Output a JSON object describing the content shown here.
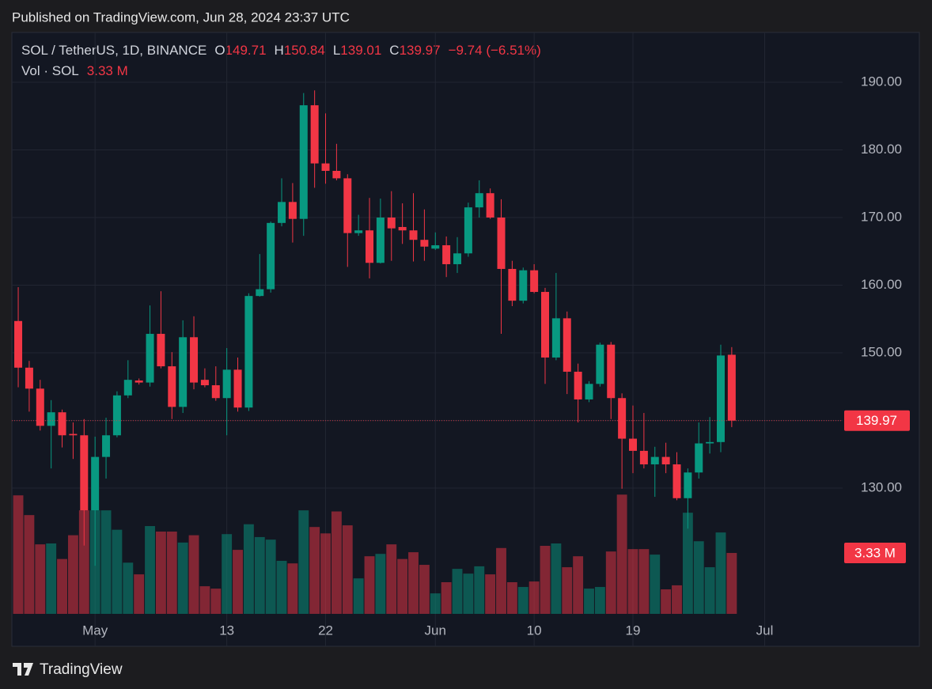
{
  "chart_data": {
    "type": "candlestick",
    "published": "Published on TradingView.com, Jun 28, 2024 23:37 UTC",
    "title": "SOL / TetherUS, 1D, BINANCE",
    "header_labels": {
      "open": "O",
      "high": "H",
      "low": "L",
      "close": "C"
    },
    "change": "−9.74 (−6.51%)",
    "logo": "TradingView",
    "up_color": "#089981",
    "down_color": "#f23645",
    "open": [
      154.7,
      147.8,
      144.7,
      139.2,
      141.2,
      138.0,
      137.8,
      126.7,
      134.6,
      137.8,
      143.7,
      145.9,
      145.6,
      152.8,
      148.0,
      142.0,
      152.3,
      146.0,
      145.2,
      143.3,
      147.5,
      141.9,
      158.4,
      159.4,
      169.2,
      172.3,
      169.8,
      186.6,
      178.0,
      176.9,
      175.8,
      167.7,
      168.1,
      163.3,
      170.0,
      168.6,
      168.1,
      166.7,
      165.4,
      165.9,
      163.1,
      164.7,
      171.5,
      173.6,
      170.0,
      162.4,
      157.7,
      162.2,
      159.0,
      149.3,
      155.1,
      147.2,
      143.1,
      145.4,
      151.2,
      143.3,
      137.3,
      135.5,
      133.5,
      134.6,
      133.5,
      128.5,
      132.3,
      136.6,
      136.8,
      149.71
    ],
    "high": [
      159.7,
      148.8,
      146.0,
      143.0,
      141.6,
      139.7,
      140.2,
      137.6,
      140.4,
      144.3,
      148.9,
      146.2,
      157.0,
      159.1,
      150.1,
      154.8,
      155.4,
      147.7,
      148.0,
      150.7,
      149.3,
      158.8,
      164.6,
      169.4,
      175.8,
      175.1,
      188.4,
      188.8,
      185.4,
      180.9,
      176.4,
      170.4,
      172.9,
      172.8,
      173.9,
      172.1,
      173.6,
      171.2,
      167.8,
      167.2,
      167.1,
      172.2,
      175.5,
      174.3,
      172.7,
      163.6,
      162.6,
      163.1,
      159.6,
      161.8,
      156.1,
      148.4,
      145.8,
      151.5,
      151.6,
      144.0,
      142.2,
      141.1,
      136.1,
      136.7,
      135.3,
      132.9,
      139.7,
      140.5,
      151.2,
      150.84
    ],
    "low": [
      144.9,
      141.3,
      138.5,
      132.9,
      136.0,
      134.3,
      121.5,
      118.5,
      131.4,
      137.5,
      143.3,
      145.3,
      145.0,
      147.7,
      140.2,
      141.1,
      144.6,
      144.9,
      142.9,
      137.8,
      141.3,
      141.4,
      158.3,
      158.9,
      168.7,
      166.3,
      167.3,
      174.4,
      175.0,
      175.5,
      162.7,
      167.3,
      161.0,
      163.2,
      163.6,
      166.1,
      163.5,
      163.6,
      165.2,
      161.2,
      161.8,
      164.2,
      170.0,
      169.8,
      152.8,
      156.9,
      157.3,
      158.8,
      145.4,
      148.9,
      143.9,
      139.7,
      142.7,
      145.0,
      140.2,
      129.9,
      132.2,
      132.9,
      128.7,
      132.2,
      128.2,
      124.0,
      131.4,
      135.1,
      135.3,
      139.01
    ],
    "close": [
      147.8,
      144.7,
      139.2,
      141.2,
      137.8,
      137.8,
      126.7,
      134.6,
      137.8,
      143.7,
      146.0,
      145.6,
      152.8,
      148.0,
      142.0,
      152.3,
      145.6,
      145.2,
      143.3,
      147.5,
      141.9,
      158.4,
      159.4,
      169.2,
      172.3,
      169.8,
      186.6,
      178.0,
      176.9,
      175.8,
      167.7,
      168.1,
      163.3,
      170.0,
      168.4,
      168.1,
      166.7,
      165.7,
      165.9,
      163.1,
      164.7,
      171.5,
      173.6,
      170.0,
      162.4,
      157.7,
      162.2,
      159.0,
      149.3,
      155.1,
      147.2,
      143.1,
      145.4,
      151.2,
      143.3,
      137.3,
      135.5,
      133.5,
      134.6,
      133.5,
      128.5,
      132.3,
      136.6,
      136.8,
      149.6,
      139.97
    ],
    "volume": {
      "name": "Vol · SOL",
      "axis": "y2",
      "values": [
        6.48,
        5.4,
        3.8,
        3.85,
        3.0,
        4.3,
        5.66,
        5.66,
        5.66,
        4.6,
        2.8,
        2.16,
        4.8,
        4.5,
        4.5,
        3.9,
        4.3,
        1.51,
        1.38,
        4.36,
        3.5,
        4.9,
        4.2,
        4.06,
        2.9,
        2.76,
        5.66,
        4.75,
        4.4,
        5.6,
        4.84,
        1.94,
        3.15,
        3.28,
        3.8,
        3.0,
        3.37,
        2.68,
        1.12,
        1.73,
        2.46,
        2.2,
        2.6,
        2.16,
        3.6,
        1.73,
        1.47,
        1.77,
        3.72,
        3.85,
        2.55,
        3.15,
        1.38,
        1.47,
        3.41,
        6.52,
        3.54,
        3.54,
        3.24,
        1.34,
        1.56,
        5.53,
        3.97,
        2.55,
        4.45,
        3.33
      ],
      "last_value_label": "3.33 M"
    },
    "ylim": [
      106.6,
      197.37
    ],
    "yticks": [
      {
        "value": 130,
        "label": "130.00"
      },
      {
        "value": 140,
        "label": "140.00"
      },
      {
        "value": 150,
        "label": "150.00"
      },
      {
        "value": 160,
        "label": "160.00"
      },
      {
        "value": 170,
        "label": "170.00"
      },
      {
        "value": 180,
        "label": "180.00"
      },
      {
        "value": 190,
        "label": "190.00"
      }
    ],
    "y2lim": [
      0,
      17
    ],
    "xlim": [
      -0.58,
      75.1
    ],
    "xticks": [
      {
        "value": 7,
        "label": "May"
      },
      {
        "value": 19,
        "label": "13"
      },
      {
        "value": 28,
        "label": "22"
      },
      {
        "value": 38,
        "label": "Jun"
      },
      {
        "value": 47,
        "label": "10"
      },
      {
        "value": 56,
        "label": "19"
      },
      {
        "value": 68,
        "label": "Jul"
      }
    ],
    "grid": true
  }
}
